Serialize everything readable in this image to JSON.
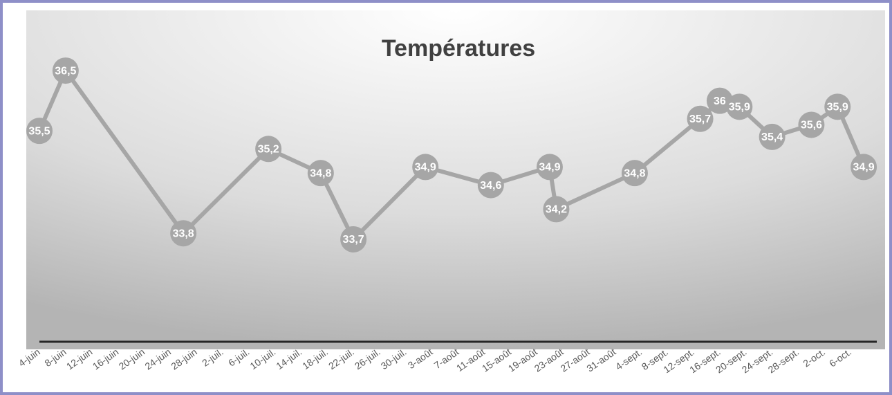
{
  "chart_data": {
    "type": "line",
    "title": "Températures",
    "x": [
      "06-04",
      "06-08",
      "06-26",
      "07-09",
      "07-17",
      "07-22",
      "08-02",
      "08-12",
      "08-21",
      "08-22",
      "09-03",
      "09-13",
      "09-16",
      "09-19",
      "09-24",
      "09-30",
      "10-04",
      "10-08"
    ],
    "values": [
      35.5,
      36.5,
      33.8,
      35.2,
      34.8,
      33.7,
      34.9,
      34.6,
      34.9,
      34.2,
      34.8,
      35.7,
      36,
      35.9,
      35.4,
      35.6,
      35.9,
      34.9
    ],
    "value_labels": [
      "35,5",
      "36,5",
      "33,8",
      "35,2",
      "34,8",
      "33,7",
      "34,9",
      "34,6",
      "34,9",
      "34,2",
      "34,8",
      "35,7",
      "36",
      "35,9",
      "35,4",
      "35,6",
      "35,9",
      "34,9"
    ],
    "color": "#a6a6a6",
    "xlim": [
      "06-04",
      "10-10"
    ],
    "xticks": [
      {
        "value": "06-04",
        "label": "4-juin"
      },
      {
        "value": "06-08",
        "label": "8-juin"
      },
      {
        "value": "06-12",
        "label": "12-juin"
      },
      {
        "value": "06-16",
        "label": "16-juin"
      },
      {
        "value": "06-20",
        "label": "20-juin"
      },
      {
        "value": "06-24",
        "label": "24-juin"
      },
      {
        "value": "06-28",
        "label": "28-juin"
      },
      {
        "value": "07-02",
        "label": "2-juil."
      },
      {
        "value": "07-06",
        "label": "6-juil."
      },
      {
        "value": "07-10",
        "label": "10-juil."
      },
      {
        "value": "07-14",
        "label": "14-juil."
      },
      {
        "value": "07-18",
        "label": "18-juil."
      },
      {
        "value": "07-22",
        "label": "22-juil."
      },
      {
        "value": "07-26",
        "label": "26-juil."
      },
      {
        "value": "07-30",
        "label": "30-juil."
      },
      {
        "value": "08-03",
        "label": "3-août"
      },
      {
        "value": "08-07",
        "label": "7-août"
      },
      {
        "value": "08-11",
        "label": "11-août"
      },
      {
        "value": "08-15",
        "label": "15-août"
      },
      {
        "value": "08-19",
        "label": "19-août"
      },
      {
        "value": "08-23",
        "label": "23-août"
      },
      {
        "value": "08-27",
        "label": "27-août"
      },
      {
        "value": "08-31",
        "label": "31-août"
      },
      {
        "value": "09-04",
        "label": "4-sept."
      },
      {
        "value": "09-08",
        "label": "8-sept."
      },
      {
        "value": "09-12",
        "label": "12-sept."
      },
      {
        "value": "09-16",
        "label": "16-sept."
      },
      {
        "value": "09-20",
        "label": "20-sept."
      },
      {
        "value": "09-24",
        "label": "24-sept."
      },
      {
        "value": "09-28",
        "label": "28-sept."
      },
      {
        "value": "10-02",
        "label": "2-oct."
      },
      {
        "value": "10-06",
        "label": "6-oct."
      }
    ],
    "ylim": [
      32,
      37.5
    ]
  }
}
